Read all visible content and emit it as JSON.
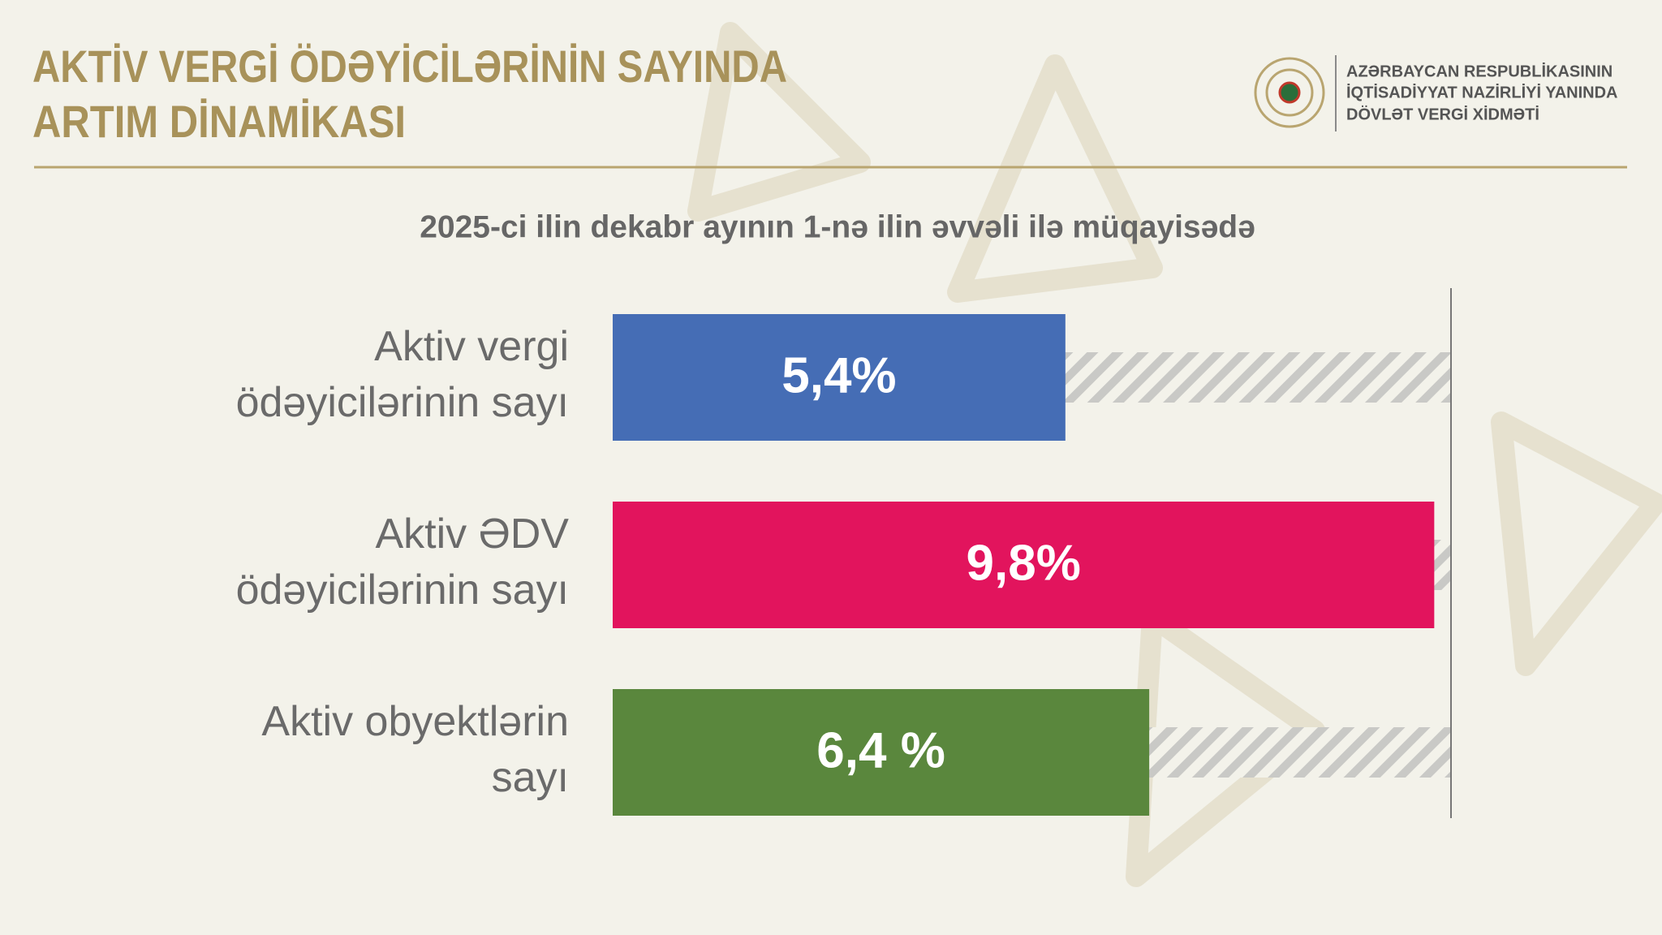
{
  "header": {
    "title": [
      "AKTİV VERGİ ÖDƏYİCİLƏRİNİN SAYINDA",
      "ARTIM DİNAMİKASI"
    ],
    "organization": [
      "AZƏRBAYCAN RESPUBLİKASININ",
      "İQTİSADİYYAT NAZİRLİYİ YANINDA",
      "DÖVLƏT VERGİ XİDMƏTİ"
    ]
  },
  "chart_data": {
    "type": "hbar",
    "subtitle": "2025-ci ilin dekabr ayının 1-nə ilin əvvəli ilə müqayisədə",
    "categories": [
      [
        "Aktiv vergi",
        "ödəyicilərinin sayı"
      ],
      [
        "Aktiv ƏDV",
        "ödəyicilərinin sayı"
      ],
      [
        "Aktiv obyektlərin",
        "sayı"
      ]
    ],
    "values": [
      5.4,
      9.8,
      6.4
    ],
    "value_labels": [
      "5,4%",
      "9,8%",
      "6,4 %"
    ],
    "colors": [
      "#456db5",
      "#e2145d",
      "#5a873d"
    ],
    "xlim": [
      0,
      10
    ]
  }
}
